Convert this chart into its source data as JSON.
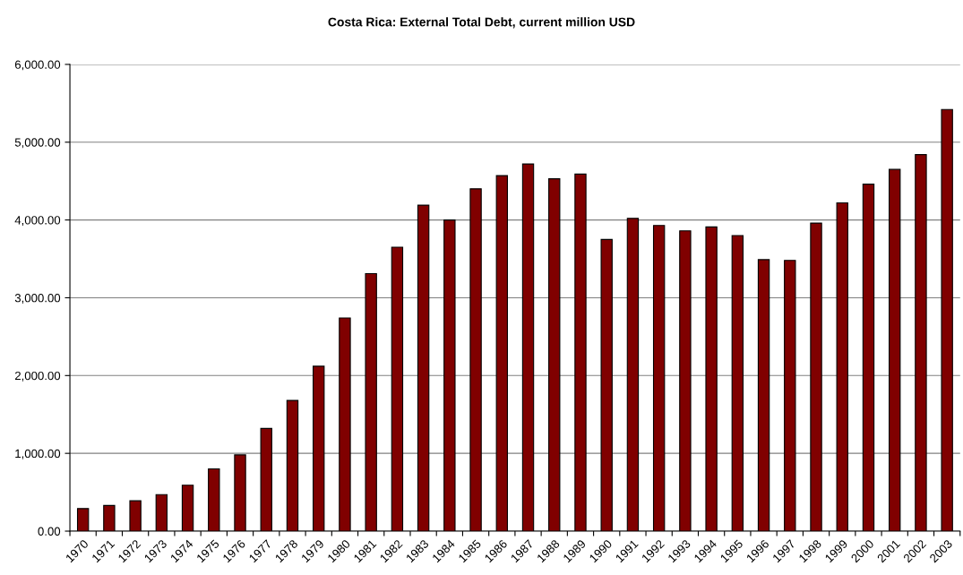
{
  "chart_data": {
    "type": "bar",
    "title": "Costa Rica: External Total Debt, current million USD",
    "categories": [
      "1970",
      "1971",
      "1972",
      "1973",
      "1974",
      "1975",
      "1976",
      "1977",
      "1978",
      "1979",
      "1980",
      "1981",
      "1982",
      "1983",
      "1984",
      "1985",
      "1986",
      "1987",
      "1988",
      "1989",
      "1990",
      "1991",
      "1992",
      "1993",
      "1994",
      "1995",
      "1996",
      "1997",
      "1998",
      "1999",
      "2000",
      "2001",
      "2002",
      "2003"
    ],
    "values": [
      290,
      330,
      390,
      470,
      590,
      800,
      980,
      1320,
      1680,
      2120,
      2740,
      3310,
      3650,
      4190,
      4000,
      4400,
      4570,
      4720,
      4530,
      4590,
      3750,
      4020,
      3930,
      3860,
      3910,
      3800,
      3490,
      3480,
      3960,
      4220,
      4460,
      4650,
      4840,
      5420
    ],
    "color": "#800000",
    "ylim": [
      0,
      6000
    ],
    "yticks": [
      {
        "value": 0,
        "label": "0.00"
      },
      {
        "value": 1000,
        "label": "1,000.00"
      },
      {
        "value": 2000,
        "label": "2,000.00"
      },
      {
        "value": 3000,
        "label": "3,000.00"
      },
      {
        "value": 4000,
        "label": "4,000.00"
      },
      {
        "value": 5000,
        "label": "5,000.00"
      },
      {
        "value": 6000,
        "label": "6,000.00"
      }
    ],
    "grid": "y",
    "legend": false
  }
}
